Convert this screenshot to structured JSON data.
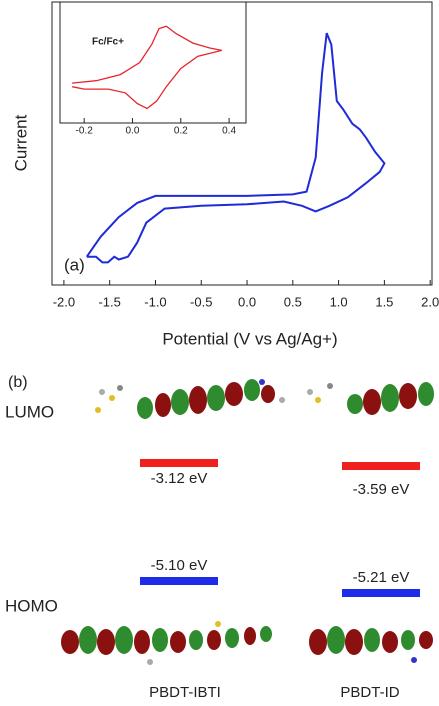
{
  "chart_data": [
    {
      "type": "line",
      "x_label": "Potential (V vs Ag/Ag+)",
      "y_label": "Current",
      "annotation": "(a)",
      "xlim": [
        -2.13,
        2.02
      ],
      "ylim": [
        0,
        100
      ],
      "xticks": [
        {
          "value": -2.0,
          "label": "-2.0"
        },
        -1.5,
        {
          "value": -1.0,
          "label": "-1.0"
        },
        -0.5,
        {
          "value": 0,
          "label": "0.0"
        },
        0.5,
        {
          "value": 1.0,
          "label": "1.0"
        },
        1.5,
        {
          "value": 2.0,
          "label": "2.0"
        }
      ],
      "series": [
        {
          "color": "#1f2bd6",
          "x": [
            -1.75,
            -1.6,
            -1.4,
            -1.2,
            -1.0,
            -0.5,
            0,
            0.5,
            0.65,
            0.75,
            0.82,
            0.87,
            0.92,
            0.98,
            1.05,
            1.15,
            1.23,
            1.3,
            1.4,
            1.5,
            1.45,
            1.3,
            1.1,
            0.9,
            0.75,
            0.6,
            0.4,
            0,
            -0.5,
            -0.9,
            -1.1,
            -1.2,
            -1.3,
            -1.4,
            -1.45,
            -1.52,
            -1.58,
            -1.65,
            -1.75
          ],
          "values": [
            10,
            17,
            24,
            29,
            31.5,
            31.5,
            31.5,
            32,
            33,
            45,
            75,
            89,
            85,
            65,
            62,
            57,
            55,
            52,
            47,
            43,
            40,
            36,
            31,
            28,
            26,
            28,
            29.5,
            28.5,
            28,
            27,
            22,
            15,
            10,
            9,
            10,
            8,
            8,
            10,
            10
          ]
        }
      ]
    },
    {
      "type": "line",
      "annotation": "Fc/Fc+",
      "xlim": [
        -0.3,
        0.47
      ],
      "ylim": [
        0,
        100
      ],
      "xticks": [
        -0.2,
        {
          "value": 0,
          "label": "0.0"
        },
        0.2,
        0.4
      ],
      "series": [
        {
          "color": "#e8252b",
          "x": [
            -0.25,
            -0.15,
            -0.05,
            0.03,
            0.08,
            0.11,
            0.14,
            0.18,
            0.25,
            0.32,
            0.37,
            0.33,
            0.27,
            0.2,
            0.14,
            0.1,
            0.06,
            0.02,
            -0.03,
            -0.1,
            -0.2,
            -0.25
          ],
          "values": [
            33,
            35,
            40,
            50,
            65,
            78,
            80,
            74,
            66,
            62,
            60,
            58,
            55,
            45,
            30,
            18,
            12,
            16,
            25,
            28,
            28,
            30
          ]
        }
      ]
    }
  ],
  "panel_b": {
    "label": "(b)",
    "lumo": "LUMO",
    "homo": "HOMO",
    "molecules": [
      {
        "name": "PBDT-IBTI",
        "lumo_energy": "-3.12 eV",
        "homo_energy": "-5.10 eV"
      },
      {
        "name": "PBDT-ID",
        "lumo_energy": "-3.59 eV",
        "homo_energy": "-5.21 eV"
      }
    ]
  }
}
